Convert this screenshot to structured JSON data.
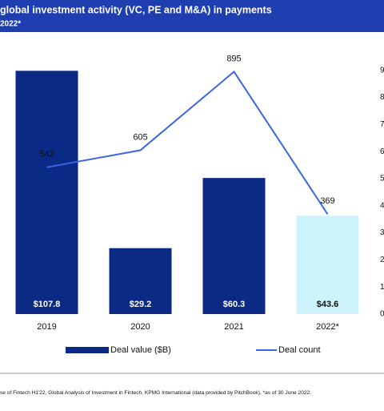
{
  "chart_data": {
    "type": "bar",
    "title": "global investment activity (VC, PE and M&A) in payments",
    "subtitle": "2022*",
    "categories": [
      "2019",
      "2020",
      "2021",
      "2022*"
    ],
    "series": [
      {
        "name": "Deal value ($B)",
        "type": "bar",
        "color": "#0b2a86",
        "colors": [
          "#0b2a86",
          "#0b2a86",
          "#0b2a86",
          "#cdf3fc"
        ],
        "values": [
          107.8,
          29.2,
          60.3,
          43.6
        ],
        "value_labels": [
          "$107.8",
          "$29.2",
          "$60.3",
          "$43.6"
        ]
      },
      {
        "name": "Deal count",
        "type": "line",
        "axis": "y2",
        "color": "#3d63e6",
        "values": [
          542,
          605,
          895,
          369
        ]
      }
    ],
    "ylim": [
      0,
      120
    ],
    "y2lim": [
      0,
      1000
    ],
    "y2ticks": [
      {
        "value": 0,
        "label": "0"
      },
      {
        "value": 100,
        "label": "1"
      },
      {
        "value": 200,
        "label": "2"
      },
      {
        "value": 300,
        "label": "3"
      },
      {
        "value": 400,
        "label": "4"
      },
      {
        "value": 500,
        "label": "5"
      },
      {
        "value": 600,
        "label": "6"
      },
      {
        "value": 700,
        "label": "7"
      },
      {
        "value": 800,
        "label": "8"
      },
      {
        "value": 900,
        "label": "9"
      }
    ],
    "footnote": "se of Fintech H1'22, Global Analysis of Investment in Fintech, KPMG International (data provided by PitchBook), *as of 30 June 2022."
  }
}
